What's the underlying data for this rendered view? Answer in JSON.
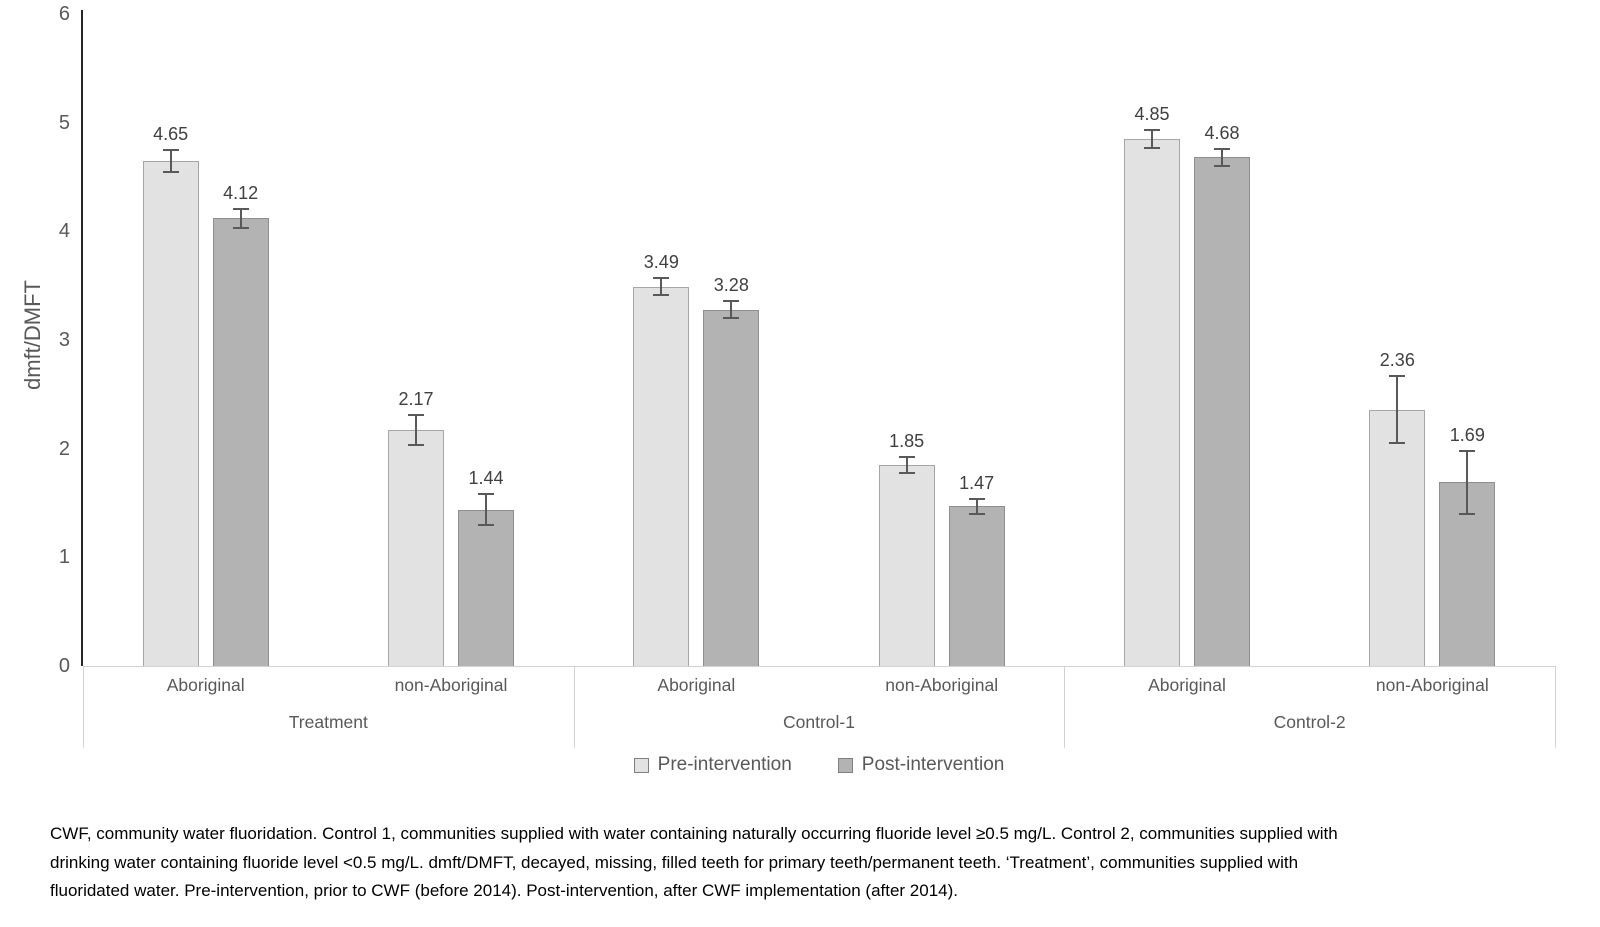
{
  "chart_data": {
    "type": "bar",
    "title": "",
    "xlabel": "",
    "ylabel": "dmft/DMFT",
    "ylim": [
      0,
      6
    ],
    "yticks": [
      0,
      1,
      2,
      3,
      4,
      5,
      6
    ],
    "grid": false,
    "legend_position": "bottom",
    "groups": [
      {
        "label": "Treatment",
        "categories": [
          "Aboriginal",
          "non-Aboriginal"
        ]
      },
      {
        "label": "Control-1",
        "categories": [
          "Aboriginal",
          "non-Aboriginal"
        ]
      },
      {
        "label": "Control-2",
        "categories": [
          "Aboriginal",
          "non-Aboriginal"
        ]
      }
    ],
    "slot_labels": [
      "Aboriginal",
      "non-Aboriginal",
      "Aboriginal",
      "non-Aboriginal",
      "Aboriginal",
      "non-Aboriginal"
    ],
    "series": [
      {
        "name": "Pre-intervention",
        "fill": "#e2e2e2",
        "border": "#a6a6a6",
        "values": [
          4.65,
          2.17,
          3.49,
          1.85,
          4.85,
          2.36
        ],
        "errors": [
          0.1,
          0.14,
          0.08,
          0.07,
          0.08,
          0.31
        ]
      },
      {
        "name": "Post-intervention",
        "fill": "#b3b3b3",
        "border": "#8e8e8e",
        "values": [
          4.12,
          1.44,
          3.28,
          1.47,
          4.68,
          1.69
        ],
        "errors": [
          0.09,
          0.14,
          0.08,
          0.07,
          0.08,
          0.29
        ]
      }
    ]
  },
  "colors": {
    "y_axis_line": "#262626",
    "band_line": "#d2d2d2",
    "error_bar": "#595959",
    "tick_text": "#595959",
    "value_text": "#404040",
    "caption_text": "#000000"
  },
  "caption": {
    "line1": "CWF, community water fluoridation. Control 1, communities supplied with water containing naturally occurring fluoride level ≥0.5 mg/L. Control 2, communities supplied with",
    "line2": "drinking water containing fluoride level <0.5 mg/L. dmft/DMFT, decayed, missing, filled teeth for primary teeth/permanent teeth. ‘Treatment’, communities supplied with",
    "line3": "fluoridated water. Pre-intervention, prior to CWF (before 2014). Post-intervention, after CWF implementation (after 2014)."
  }
}
